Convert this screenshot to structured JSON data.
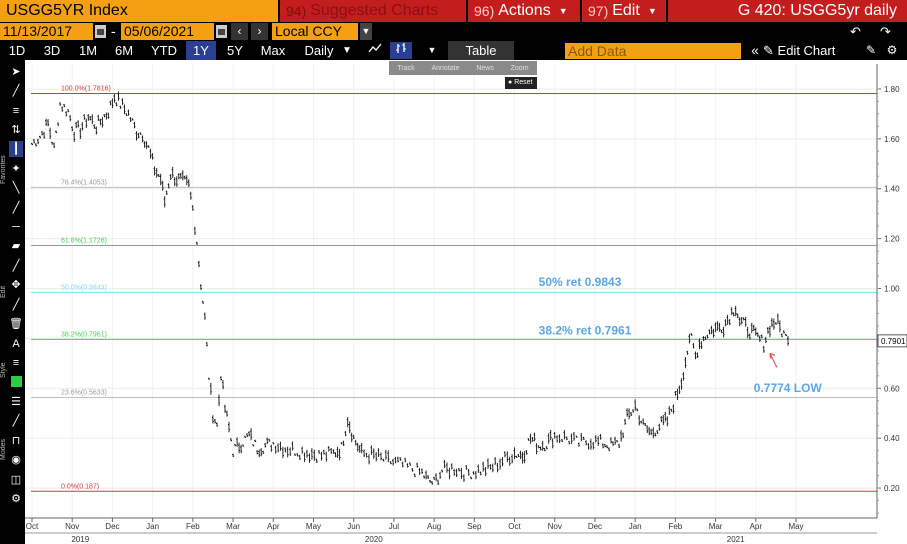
{
  "topbar": {
    "ticker": "USGG5YR Index",
    "suggested_num": "94)",
    "suggested_label": "Suggested Charts",
    "actions_num": "96)",
    "actions_label": "Actions",
    "edit_num": "97)",
    "edit_label": "Edit",
    "title": "G 420: USGG5yr daily"
  },
  "dates": {
    "start": "11/13/2017",
    "end": "05/06/2021",
    "separator": "-"
  },
  "currency": "Local CCY",
  "periods": [
    "1D",
    "3D",
    "1M",
    "6M",
    "YTD",
    "1Y",
    "5Y",
    "Max"
  ],
  "active_period": "1Y",
  "frequency": "Daily",
  "table_label": "Table",
  "add_data_placeholder": "Add Data",
  "edit_chart_label": "Edit Chart",
  "popup": {
    "items": [
      "Track",
      "Annotate",
      "News",
      "Zoom"
    ],
    "reset": "Reset"
  },
  "sidebar": {
    "labels": [
      "Favorites",
      "Edit",
      "Style",
      "Modes"
    ]
  },
  "chart_data": {
    "type": "line",
    "y_range": [
      0.08,
      1.9
    ],
    "y_ticks": [
      {
        "value": 1.8,
        "label": "1.80"
      },
      {
        "value": 1.6,
        "label": "1.60"
      },
      {
        "value": 1.4,
        "label": "1.40"
      },
      {
        "value": 1.2,
        "label": "1.20"
      },
      {
        "value": 1.0,
        "label": "1.00"
      },
      {
        "value": 0.8,
        "label": "0.80"
      },
      {
        "value": 0.6,
        "label": "0.60"
      },
      {
        "value": 0.4,
        "label": "0.40"
      },
      {
        "value": 0.2,
        "label": "0.20"
      }
    ],
    "x_months": [
      {
        "t": 0,
        "label": "Oct"
      },
      {
        "t": 1,
        "label": "Nov"
      },
      {
        "t": 2,
        "label": "Dec"
      },
      {
        "t": 3,
        "label": "Jan"
      },
      {
        "t": 4,
        "label": "Feb"
      },
      {
        "t": 5,
        "label": "Mar"
      },
      {
        "t": 6,
        "label": "Apr"
      },
      {
        "t": 7,
        "label": "May"
      },
      {
        "t": 8,
        "label": "Jun"
      },
      {
        "t": 9,
        "label": "Jul"
      },
      {
        "t": 10,
        "label": "Aug"
      },
      {
        "t": 11,
        "label": "Sep"
      },
      {
        "t": 12,
        "label": "Oct"
      },
      {
        "t": 13,
        "label": "Nov"
      },
      {
        "t": 14,
        "label": "Dec"
      },
      {
        "t": 15,
        "label": "Jan"
      },
      {
        "t": 16,
        "label": "Feb"
      },
      {
        "t": 17,
        "label": "Mar"
      },
      {
        "t": 18,
        "label": "Apr"
      },
      {
        "t": 19,
        "label": "May"
      }
    ],
    "x_years": [
      {
        "t": 1.2,
        "label": "2019"
      },
      {
        "t": 8.5,
        "label": "2020"
      },
      {
        "t": 17.5,
        "label": "2021"
      }
    ],
    "fib_levels": [
      {
        "value": 1.7816,
        "label": "100.0%(1.7816)",
        "color": "#d23a3a"
      },
      {
        "value": 1.4053,
        "label": "76.4%(1.4053)",
        "color": "#bdbdbd"
      },
      {
        "value": 1.1726,
        "label": "61.8%(1.1726)",
        "color": "#44d34a"
      },
      {
        "value": 0.9843,
        "label": "50.0%(0.9843)",
        "color": "#7ee0f0"
      },
      {
        "value": 0.7961,
        "label": "38.2%(0.7961)",
        "color": "#44d34a"
      },
      {
        "value": 0.5633,
        "label": "23.6%(0.5633)",
        "color": "#bdbdbd"
      },
      {
        "value": 0.187,
        "label": "0.0%(0.187)",
        "color": "#d23a3a"
      }
    ],
    "annotations": [
      {
        "text": "50% ret 0.9843",
        "t": 12.6,
        "value": 1.01
      },
      {
        "text": "38.2% ret 0.7961",
        "t": 12.6,
        "value": 0.815
      },
      {
        "text": "0.7774 LOW",
        "t": 17.95,
        "value": 0.585
      }
    ],
    "last_value": {
      "value": 0.7901,
      "label": "0.7901"
    },
    "series": [
      {
        "values": [
          [
            0.0,
            1.58
          ],
          [
            0.2,
            1.61
          ],
          [
            0.4,
            1.66
          ],
          [
            0.55,
            1.56
          ],
          [
            0.7,
            1.74
          ],
          [
            0.9,
            1.71
          ],
          [
            1.05,
            1.63
          ],
          [
            1.2,
            1.64
          ],
          [
            1.4,
            1.69
          ],
          [
            1.6,
            1.65
          ],
          [
            1.75,
            1.68
          ],
          [
            1.9,
            1.71
          ],
          [
            2.05,
            1.77
          ],
          [
            2.2,
            1.74
          ],
          [
            2.4,
            1.7
          ],
          [
            2.6,
            1.63
          ],
          [
            2.75,
            1.62
          ],
          [
            2.9,
            1.56
          ],
          [
            3.05,
            1.48
          ],
          [
            3.2,
            1.44
          ],
          [
            3.3,
            1.35
          ],
          [
            3.45,
            1.46
          ],
          [
            3.6,
            1.44
          ],
          [
            3.75,
            1.43
          ],
          [
            3.9,
            1.41
          ],
          [
            4.0,
            1.32
          ],
          [
            4.1,
            1.19
          ],
          [
            4.2,
            1.02
          ],
          [
            4.3,
            0.88
          ],
          [
            4.4,
            0.65
          ],
          [
            4.5,
            0.5
          ],
          [
            4.6,
            0.45
          ],
          [
            4.7,
            0.66
          ],
          [
            4.8,
            0.52
          ],
          [
            4.9,
            0.44
          ],
          [
            5.0,
            0.35
          ],
          [
            5.2,
            0.38
          ],
          [
            5.4,
            0.41
          ],
          [
            5.6,
            0.36
          ],
          [
            5.8,
            0.37
          ],
          [
            6.0,
            0.38
          ],
          [
            6.3,
            0.36
          ],
          [
            6.6,
            0.35
          ],
          [
            6.9,
            0.34
          ],
          [
            7.2,
            0.33
          ],
          [
            7.5,
            0.34
          ],
          [
            7.7,
            0.36
          ],
          [
            7.85,
            0.48
          ],
          [
            8.0,
            0.4
          ],
          [
            8.2,
            0.34
          ],
          [
            8.5,
            0.33
          ],
          [
            8.8,
            0.31
          ],
          [
            9.1,
            0.3
          ],
          [
            9.4,
            0.28
          ],
          [
            9.7,
            0.26
          ],
          [
            9.85,
            0.23
          ],
          [
            10.0,
            0.22
          ],
          [
            10.2,
            0.27
          ],
          [
            10.5,
            0.28
          ],
          [
            10.8,
            0.26
          ],
          [
            11.1,
            0.27
          ],
          [
            11.4,
            0.28
          ],
          [
            11.7,
            0.31
          ],
          [
            12.0,
            0.34
          ],
          [
            12.2,
            0.33
          ],
          [
            12.4,
            0.4
          ],
          [
            12.6,
            0.37
          ],
          [
            12.8,
            0.38
          ],
          [
            13.0,
            0.41
          ],
          [
            13.3,
            0.4
          ],
          [
            13.6,
            0.38
          ],
          [
            13.9,
            0.39
          ],
          [
            14.2,
            0.38
          ],
          [
            14.4,
            0.37
          ],
          [
            14.6,
            0.38
          ],
          [
            14.8,
            0.48
          ],
          [
            15.0,
            0.53
          ],
          [
            15.2,
            0.45
          ],
          [
            15.4,
            0.42
          ],
          [
            15.6,
            0.45
          ],
          [
            15.8,
            0.47
          ],
          [
            16.0,
            0.56
          ],
          [
            16.15,
            0.63
          ],
          [
            16.3,
            0.75
          ],
          [
            16.4,
            0.8
          ],
          [
            16.5,
            0.73
          ],
          [
            16.6,
            0.78
          ],
          [
            16.8,
            0.82
          ],
          [
            17.0,
            0.84
          ],
          [
            17.2,
            0.85
          ],
          [
            17.35,
            0.89
          ],
          [
            17.5,
            0.93
          ],
          [
            17.6,
            0.87
          ],
          [
            17.8,
            0.84
          ],
          [
            18.0,
            0.81
          ],
          [
            18.2,
            0.78
          ],
          [
            18.35,
            0.85
          ],
          [
            18.5,
            0.87
          ],
          [
            18.65,
            0.83
          ],
          [
            18.8,
            0.79
          ]
        ]
      }
    ]
  }
}
